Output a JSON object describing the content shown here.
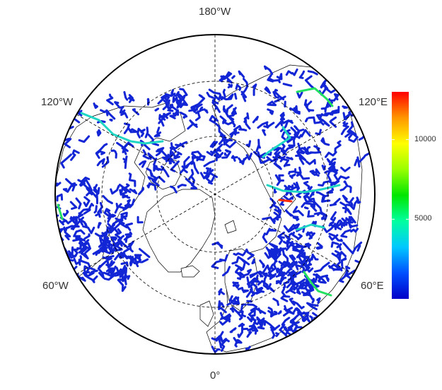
{
  "map": {
    "projection": "north-polar-stereographic",
    "longitude_labels": {
      "top": "180°W",
      "bottom": "0°",
      "upper_left": "120°W",
      "upper_right": "120°E",
      "lower_left": "60°W",
      "lower_right": "60°E"
    },
    "land_color": "#ffffff",
    "coastline_color": "#000000",
    "graticule_style": "dashed"
  },
  "colorbar": {
    "ticks": [
      {
        "value": 5000,
        "label": "5000"
      },
      {
        "value": 10000,
        "label": "10000"
      }
    ],
    "range": [
      0,
      13000
    ],
    "colors": [
      "#0000c8",
      "#0050ff",
      "#00c8ff",
      "#00ffa0",
      "#00e600",
      "#9aff00",
      "#ffff00",
      "#ff9600",
      "#ff0000"
    ]
  },
  "rivers": {
    "dominant_color": "#1226d6",
    "highlight_colors": [
      "#1fd6c4",
      "#23e060",
      "#ff2a00"
    ]
  }
}
